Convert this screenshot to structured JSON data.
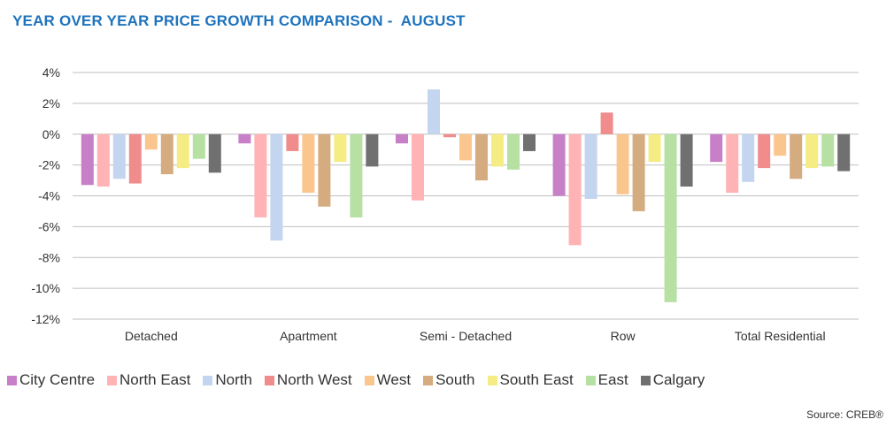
{
  "chart_data": {
    "type": "bar",
    "title": "YEAR OVER YEAR PRICE GROWTH COMPARISON -  AUGUST",
    "source": "Source: CREB®",
    "categories": [
      "Detached",
      "Apartment",
      "Semi - Detached",
      "Row",
      "Total Residential"
    ],
    "yticks": [
      "4%",
      "2%",
      "0%",
      "-2%",
      "-4%",
      "-6%",
      "-8%",
      "-10%",
      "-12%"
    ],
    "ylim": [
      -12,
      4
    ],
    "grid": true,
    "legend_position": "bottom",
    "series": [
      {
        "name": "City Centre",
        "color": "#c77fc7",
        "values": [
          -3.3,
          -0.6,
          -0.6,
          -4.0,
          -1.8
        ]
      },
      {
        "name": "North East",
        "color": "#ffb3b5",
        "values": [
          -3.4,
          -5.4,
          -4.3,
          -7.2,
          -3.8
        ]
      },
      {
        "name": "North",
        "color": "#c4d5ef",
        "values": [
          -2.9,
          -6.9,
          2.9,
          -4.2,
          -3.1
        ]
      },
      {
        "name": "North West",
        "color": "#f08c8c",
        "values": [
          -3.2,
          -1.1,
          -0.2,
          1.4,
          -2.2
        ]
      },
      {
        "name": "West",
        "color": "#fbc68e",
        "values": [
          -1.0,
          -3.8,
          -1.7,
          -3.9,
          -1.4
        ]
      },
      {
        "name": "South",
        "color": "#d5ac7f",
        "values": [
          -2.6,
          -4.7,
          -3.0,
          -5.0,
          -2.9
        ]
      },
      {
        "name": "South East",
        "color": "#f5ec84",
        "values": [
          -2.2,
          -1.8,
          -2.1,
          -1.8,
          -2.2
        ]
      },
      {
        "name": "East",
        "color": "#b6e1a2",
        "values": [
          -1.6,
          -5.4,
          -2.3,
          -10.9,
          -2.1
        ]
      },
      {
        "name": "Calgary",
        "color": "#707070",
        "values": [
          -2.5,
          -2.1,
          -1.1,
          -3.4,
          -2.4
        ]
      }
    ]
  }
}
